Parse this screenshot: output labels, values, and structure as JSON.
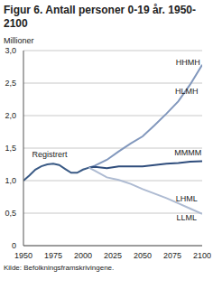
{
  "chart_data": {
    "type": "line",
    "title": "Figur 6. Antall personer 0-19 år. 1950-2100",
    "y_label": "Millioner",
    "source": "Kilde: Befolkningsframskrivingene.",
    "xlim": [
      1950,
      2100
    ],
    "xticks": [
      1950,
      1975,
      2000,
      2025,
      2050,
      2075,
      2100
    ],
    "ylim": [
      0,
      3
    ],
    "yticks": [
      0,
      {
        "value": 0.5,
        "label": "0,5"
      },
      {
        "value": 1,
        "label": "1,0"
      },
      {
        "value": 1.5,
        "label": "1,5"
      },
      {
        "value": 2,
        "label": "2,0"
      },
      {
        "value": 2.5,
        "label": "2,5"
      },
      {
        "value": 3,
        "label": "3,0"
      }
    ],
    "grid": true,
    "series": [
      {
        "name": "Registrert",
        "color": "#3a5a85",
        "x": [
          1950,
          1955,
          1960,
          1965,
          1970,
          1975,
          1980,
          1985,
          1990,
          1995,
          2000,
          2005
        ],
        "values": [
          1.0,
          1.08,
          1.17,
          1.22,
          1.25,
          1.26,
          1.24,
          1.18,
          1.12,
          1.12,
          1.17,
          1.2
        ]
      },
      {
        "name": "HHMH",
        "color": "#8298bd",
        "x": [
          2005,
          2010,
          2020,
          2030,
          2040,
          2050,
          2060,
          2070,
          2080,
          2090,
          2100
        ],
        "values": [
          1.2,
          1.23,
          1.32,
          1.45,
          1.57,
          1.68,
          1.85,
          2.03,
          2.22,
          2.48,
          2.78
        ]
      },
      {
        "name": "MMMM",
        "color": "#2f4d7c",
        "x": [
          2005,
          2010,
          2020,
          2030,
          2040,
          2050,
          2060,
          2070,
          2080,
          2090,
          2100
        ],
        "values": [
          1.2,
          1.21,
          1.19,
          1.22,
          1.22,
          1.22,
          1.24,
          1.26,
          1.27,
          1.29,
          1.3
        ]
      },
      {
        "name": "LLML",
        "color": "#aebbd2",
        "x": [
          2005,
          2010,
          2020,
          2030,
          2040,
          2050,
          2060,
          2070,
          2080,
          2090,
          2100
        ],
        "values": [
          1.2,
          1.15,
          1.05,
          1.01,
          0.95,
          0.87,
          0.8,
          0.73,
          0.65,
          0.57,
          0.49
        ]
      }
    ],
    "annotations": [
      {
        "text": "Registrert",
        "x": 1972,
        "y": 1.4
      },
      {
        "text": "HHMH",
        "x": 2088,
        "y": 2.82
      },
      {
        "text": "HLMH",
        "x": 2087,
        "y": 2.38
      },
      {
        "text": "MMMM",
        "x": 2088,
        "y": 1.43
      },
      {
        "text": "LHML",
        "x": 2087,
        "y": 0.72
      },
      {
        "text": "LLML",
        "x": 2087,
        "y": 0.44
      }
    ]
  }
}
